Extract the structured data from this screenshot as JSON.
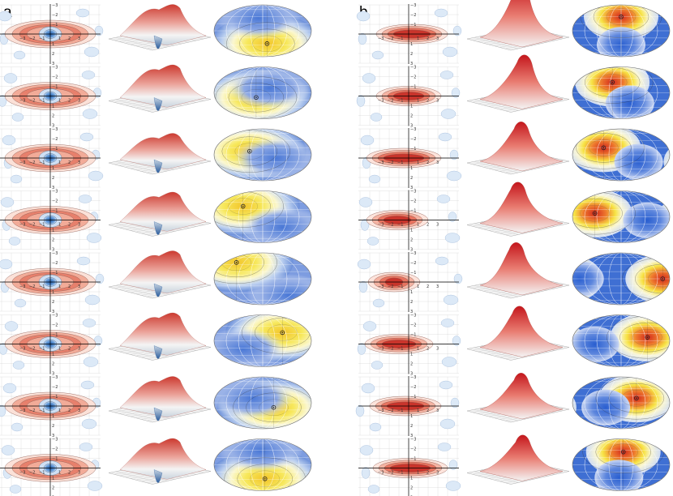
{
  "panels": [
    {
      "label": "a",
      "row_count": 8,
      "surface": "dip",
      "contour_ticks": [
        "−3",
        "−2",
        "−1",
        "1",
        "2",
        "3"
      ],
      "sphere_points": [
        {
          "lon": 0.1,
          "lat": -0.55
        },
        {
          "lon": -0.15,
          "lat": -0.2
        },
        {
          "lon": -0.3,
          "lat": 0.15
        },
        {
          "lon": -0.45,
          "lat": 0.45
        },
        {
          "lon": -0.6,
          "lat": 0.7
        },
        {
          "lon": 0.45,
          "lat": 0.35
        },
        {
          "lon": 0.25,
          "lat": -0.2
        },
        {
          "lon": 0.05,
          "lat": -0.6
        }
      ]
    },
    {
      "label": "b",
      "row_count": 8,
      "surface": "peak",
      "contour_ticks": [
        "−3",
        "−2",
        "−1",
        "1",
        "2",
        "3"
      ],
      "sphere_points": [
        {
          "lon": 0.0,
          "lat": 0.6
        },
        {
          "lon": -0.2,
          "lat": 0.45
        },
        {
          "lon": -0.4,
          "lat": 0.3
        },
        {
          "lon": -0.6,
          "lat": 0.15
        },
        {
          "lon": 0.95,
          "lat": 0.0
        },
        {
          "lon": 0.6,
          "lat": 0.15
        },
        {
          "lon": 0.35,
          "lat": 0.2
        },
        {
          "lon": 0.05,
          "lat": 0.55
        }
      ]
    }
  ],
  "colors": {
    "red": "#d63a2f",
    "blue": "#3f6fc9",
    "yellow": "#f6e43a",
    "light_blue_blob": "#dce9f7",
    "grid": "#d8d8d8"
  }
}
